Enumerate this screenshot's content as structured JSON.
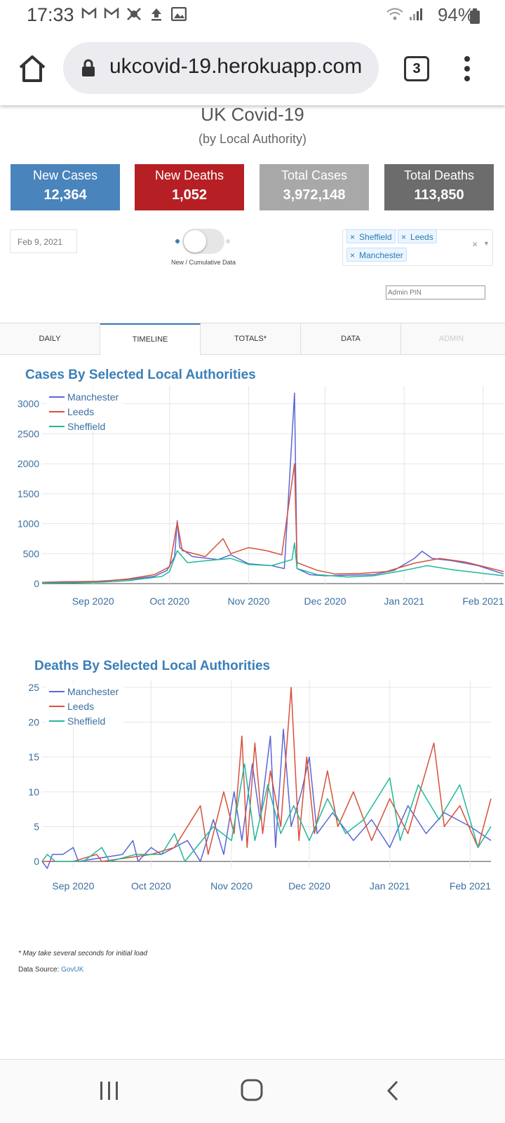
{
  "status_bar": {
    "time": "17:33",
    "battery": "94%",
    "icons": [
      "gmail-icon",
      "gmail-icon",
      "app-icon",
      "upload-icon",
      "image-icon",
      "wifi-icon",
      "signal-icon",
      "battery-icon"
    ]
  },
  "browser": {
    "url": "ukcovid-19.herokuapp.com",
    "tab_count": "3"
  },
  "header": {
    "title": "UK Covid-19",
    "subtitle": "(by Local Authority)"
  },
  "cards": [
    {
      "title": "New Cases",
      "value": "12,364",
      "color": "#4a84bc"
    },
    {
      "title": "New Deaths",
      "value": "1,052",
      "color": "#b62024"
    },
    {
      "title": "Total Cases",
      "value": "3,972,148",
      "color": "#a8a8a8"
    },
    {
      "title": "Total Deaths",
      "value": "113,850",
      "color": "#6c6c6c"
    }
  ],
  "controls": {
    "date": "Feb 9, 2021",
    "toggle_label": "New / Cumulative Data",
    "toggle_on": false,
    "selected_areas": [
      "Sheffield",
      "Leeds",
      "Manchester"
    ],
    "admin_pin_placeholder": "Admin PIN"
  },
  "tabs": [
    {
      "label": "DAILY"
    },
    {
      "label": "TIMELINE"
    },
    {
      "label": "TOTALS*"
    },
    {
      "label": "DATA"
    },
    {
      "label": "ADMIN"
    }
  ],
  "active_tab": "TIMELINE",
  "chart_data": [
    {
      "type": "line",
      "title": "Cases By Selected Local Authorities",
      "x_ticks": [
        "Sep 2020",
        "Oct 2020",
        "Nov 2020",
        "Dec 2020",
        "Jan 2021",
        "Feb 2021"
      ],
      "x_range": [
        "2020-08-12",
        "2021-02-09"
      ],
      "ylim": [
        0,
        3300
      ],
      "y_ticks": [
        0,
        500,
        1000,
        1500,
        2000,
        2500,
        3000
      ],
      "grid": true,
      "legend": "top-left",
      "series": [
        {
          "name": "Manchester",
          "color": "#5b67d6",
          "points": [
            [
              "2020-08-12",
              20
            ],
            [
              "2020-08-20",
              30
            ],
            [
              "2020-09-01",
              35
            ],
            [
              "2020-09-15",
              70
            ],
            [
              "2020-09-25",
              120
            ],
            [
              "2020-09-30",
              220
            ],
            [
              "2020-10-03",
              450
            ],
            [
              "2020-10-04",
              1050
            ],
            [
              "2020-10-05",
              600
            ],
            [
              "2020-10-10",
              450
            ],
            [
              "2020-10-20",
              400
            ],
            [
              "2020-10-25",
              480
            ],
            [
              "2020-11-01",
              330
            ],
            [
              "2020-11-10",
              300
            ],
            [
              "2020-11-15",
              250
            ],
            [
              "2020-11-19",
              3180
            ],
            [
              "2020-11-20",
              250
            ],
            [
              "2020-11-25",
              150
            ],
            [
              "2020-12-01",
              130
            ],
            [
              "2020-12-10",
              140
            ],
            [
              "2020-12-20",
              150
            ],
            [
              "2020-12-28",
              220
            ],
            [
              "2021-01-05",
              420
            ],
            [
              "2021-01-08",
              540
            ],
            [
              "2021-01-12",
              420
            ],
            [
              "2021-01-20",
              380
            ],
            [
              "2021-01-30",
              300
            ],
            [
              "2021-02-09",
              160
            ]
          ]
        },
        {
          "name": "Leeds",
          "color": "#d7503c",
          "points": [
            [
              "2020-08-12",
              20
            ],
            [
              "2020-08-25",
              30
            ],
            [
              "2020-09-05",
              40
            ],
            [
              "2020-09-15",
              80
            ],
            [
              "2020-09-25",
              150
            ],
            [
              "2020-10-01",
              280
            ],
            [
              "2020-10-04",
              1020
            ],
            [
              "2020-10-06",
              550
            ],
            [
              "2020-10-15",
              450
            ],
            [
              "2020-10-22",
              750
            ],
            [
              "2020-10-25",
              500
            ],
            [
              "2020-11-01",
              600
            ],
            [
              "2020-11-08",
              550
            ],
            [
              "2020-11-14",
              480
            ],
            [
              "2020-11-19",
              2000
            ],
            [
              "2020-11-20",
              350
            ],
            [
              "2020-11-28",
              220
            ],
            [
              "2020-12-05",
              160
            ],
            [
              "2020-12-15",
              170
            ],
            [
              "2020-12-25",
              200
            ],
            [
              "2021-01-05",
              340
            ],
            [
              "2021-01-15",
              420
            ],
            [
              "2021-01-25",
              360
            ],
            [
              "2021-02-09",
              200
            ]
          ]
        },
        {
          "name": "Sheffield",
          "color": "#22b89a",
          "points": [
            [
              "2020-08-12",
              10
            ],
            [
              "2020-08-25",
              15
            ],
            [
              "2020-09-05",
              25
            ],
            [
              "2020-09-15",
              50
            ],
            [
              "2020-09-28",
              120
            ],
            [
              "2020-10-01",
              200
            ],
            [
              "2020-10-04",
              550
            ],
            [
              "2020-10-08",
              350
            ],
            [
              "2020-10-15",
              380
            ],
            [
              "2020-10-25",
              420
            ],
            [
              "2020-11-01",
              320
            ],
            [
              "2020-11-10",
              300
            ],
            [
              "2020-11-18",
              400
            ],
            [
              "2020-11-19",
              680
            ],
            [
              "2020-11-20",
              250
            ],
            [
              "2020-11-28",
              150
            ],
            [
              "2020-12-10",
              110
            ],
            [
              "2020-12-20",
              130
            ],
            [
              "2021-01-01",
              220
            ],
            [
              "2021-01-10",
              300
            ],
            [
              "2021-01-20",
              230
            ],
            [
              "2021-02-09",
              130
            ]
          ]
        }
      ]
    },
    {
      "type": "line",
      "title": "Deaths By Selected Local Authorities",
      "x_ticks": [
        "Sep 2020",
        "Oct 2020",
        "Nov 2020",
        "Dec 2020",
        "Jan 2021",
        "Feb 2021"
      ],
      "x_range": [
        "2020-08-20",
        "2021-02-09"
      ],
      "ylim": [
        -1,
        26
      ],
      "y_ticks": [
        0,
        5,
        10,
        15,
        20,
        25
      ],
      "grid": true,
      "legend": "top-left",
      "series": [
        {
          "name": "Manchester",
          "color": "#5b67d6",
          "points": [
            [
              "2020-08-20",
              0
            ],
            [
              "2020-08-22",
              -1
            ],
            [
              "2020-08-24",
              1
            ],
            [
              "2020-08-28",
              1
            ],
            [
              "2020-09-01",
              2
            ],
            [
              "2020-09-03",
              0
            ],
            [
              "2020-09-20",
              1
            ],
            [
              "2020-09-24",
              3
            ],
            [
              "2020-09-26",
              0
            ],
            [
              "2020-10-01",
              2
            ],
            [
              "2020-10-05",
              1
            ],
            [
              "2020-10-15",
              3
            ],
            [
              "2020-10-20",
              0
            ],
            [
              "2020-10-25",
              6
            ],
            [
              "2020-10-29",
              1
            ],
            [
              "2020-11-02",
              10
            ],
            [
              "2020-11-05",
              3
            ],
            [
              "2020-11-09",
              14
            ],
            [
              "2020-11-12",
              6
            ],
            [
              "2020-11-16",
              18
            ],
            [
              "2020-11-18",
              2
            ],
            [
              "2020-11-21",
              19
            ],
            [
              "2020-11-24",
              5
            ],
            [
              "2020-11-28",
              10
            ],
            [
              "2020-12-01",
              15
            ],
            [
              "2020-12-04",
              4
            ],
            [
              "2020-12-10",
              7
            ],
            [
              "2020-12-18",
              3
            ],
            [
              "2020-12-25",
              6
            ],
            [
              "2021-01-01",
              2
            ],
            [
              "2021-01-08",
              8
            ],
            [
              "2021-01-15",
              4
            ],
            [
              "2021-01-22",
              7
            ],
            [
              "2021-02-01",
              5
            ],
            [
              "2021-02-09",
              3
            ]
          ]
        },
        {
          "name": "Leeds",
          "color": "#d7503c",
          "points": [
            [
              "2020-08-20",
              0
            ],
            [
              "2020-09-01",
              0
            ],
            [
              "2020-09-10",
              1
            ],
            [
              "2020-09-12",
              0
            ],
            [
              "2020-10-01",
              1
            ],
            [
              "2020-10-10",
              2
            ],
            [
              "2020-10-20",
              8
            ],
            [
              "2020-10-23",
              1
            ],
            [
              "2020-10-29",
              10
            ],
            [
              "2020-11-02",
              4
            ],
            [
              "2020-11-05",
              18
            ],
            [
              "2020-11-07",
              2
            ],
            [
              "2020-11-10",
              17
            ],
            [
              "2020-11-13",
              4
            ],
            [
              "2020-11-16",
              13
            ],
            [
              "2020-11-20",
              5
            ],
            [
              "2020-11-24",
              25
            ],
            [
              "2020-11-27",
              3
            ],
            [
              "2020-11-30",
              15
            ],
            [
              "2020-12-03",
              4
            ],
            [
              "2020-12-08",
              13
            ],
            [
              "2020-12-12",
              5
            ],
            [
              "2020-12-18",
              10
            ],
            [
              "2020-12-25",
              3
            ],
            [
              "2021-01-01",
              9
            ],
            [
              "2021-01-08",
              4
            ],
            [
              "2021-01-18",
              17
            ],
            [
              "2021-01-22",
              5
            ],
            [
              "2021-01-28",
              8
            ],
            [
              "2021-02-04",
              2
            ],
            [
              "2021-02-09",
              9
            ]
          ]
        },
        {
          "name": "Sheffield",
          "color": "#22b89a",
          "points": [
            [
              "2020-08-20",
              0
            ],
            [
              "2020-08-22",
              1
            ],
            [
              "2020-08-25",
              0
            ],
            [
              "2020-09-05",
              0
            ],
            [
              "2020-09-12",
              2
            ],
            [
              "2020-09-15",
              0
            ],
            [
              "2020-09-25",
              1
            ],
            [
              "2020-10-05",
              1
            ],
            [
              "2020-10-10",
              4
            ],
            [
              "2020-10-14",
              0
            ],
            [
              "2020-10-25",
              5
            ],
            [
              "2020-11-01",
              3
            ],
            [
              "2020-11-06",
              14
            ],
            [
              "2020-11-10",
              3
            ],
            [
              "2020-11-15",
              11
            ],
            [
              "2020-11-20",
              4
            ],
            [
              "2020-11-25",
              8
            ],
            [
              "2020-12-01",
              3
            ],
            [
              "2020-12-08",
              9
            ],
            [
              "2020-12-15",
              4
            ],
            [
              "2020-12-22",
              6
            ],
            [
              "2021-01-01",
              12
            ],
            [
              "2021-01-05",
              3
            ],
            [
              "2021-01-12",
              11
            ],
            [
              "2021-01-20",
              6
            ],
            [
              "2021-01-28",
              11
            ],
            [
              "2021-02-04",
              2
            ],
            [
              "2021-02-09",
              5
            ]
          ]
        }
      ]
    }
  ],
  "footer": {
    "note": "* May take several seconds for initial load",
    "source_prefix": "Data Source:",
    "source_link": "GovUK"
  }
}
